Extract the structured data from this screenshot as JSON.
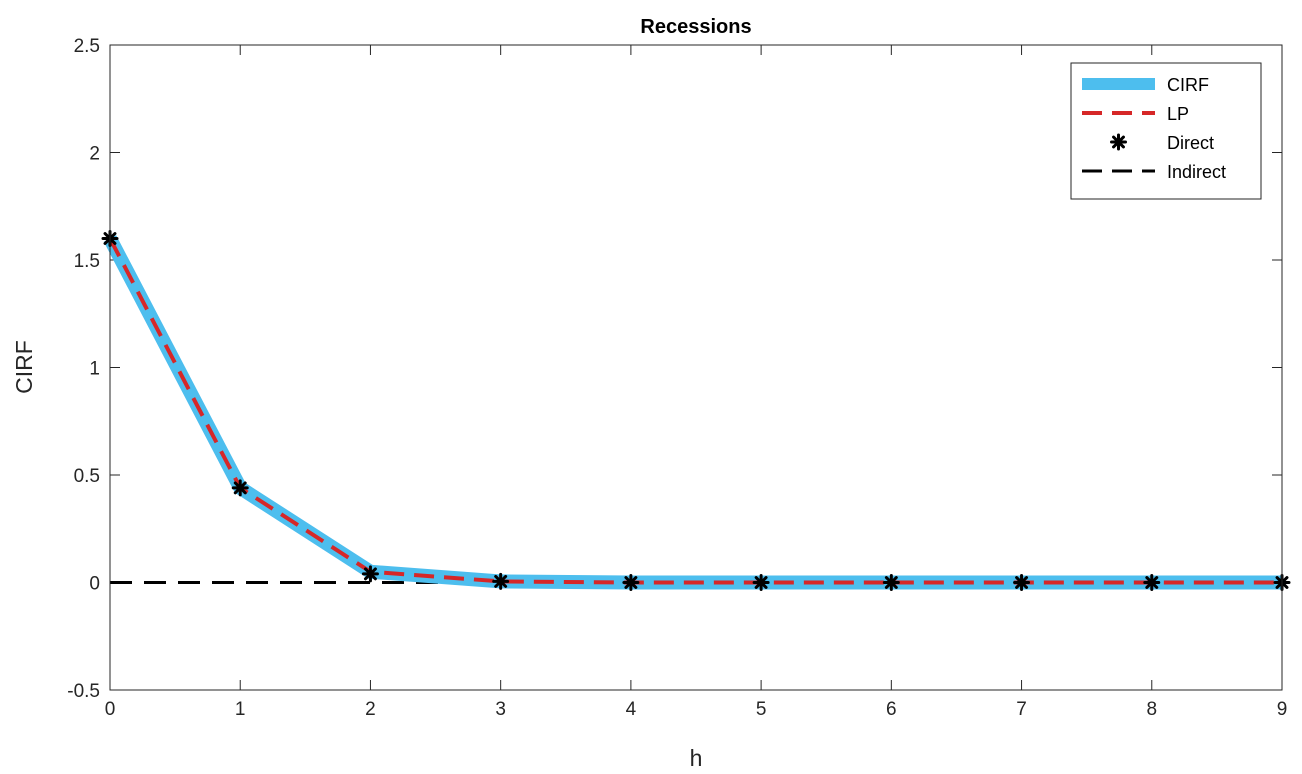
{
  "chart_data": {
    "type": "line",
    "title": "Recessions",
    "xlabel": "h",
    "ylabel": "CIRF",
    "xlim": [
      0,
      9
    ],
    "ylim": [
      -0.5,
      2.5
    ],
    "xticks": [
      0,
      1,
      2,
      3,
      4,
      5,
      6,
      7,
      8,
      9
    ],
    "yticks": [
      -0.5,
      0,
      0.5,
      1,
      1.5,
      2,
      2.5
    ],
    "ytick_labels": [
      "-0.5",
      "0",
      "0.5",
      "1",
      "1.5",
      "2",
      "2.5"
    ],
    "grid": false,
    "legend_position": "top-right",
    "x": [
      0,
      1,
      2,
      3,
      4,
      5,
      6,
      7,
      8,
      9
    ],
    "series": [
      {
        "name": "CIRF",
        "style": "thick-solid",
        "color": "#4DBEEE",
        "values": [
          1.6,
          0.44,
          0.05,
          0.005,
          0.0,
          0.0,
          0.0,
          0.0,
          0.0,
          0.0
        ]
      },
      {
        "name": "LP",
        "style": "dashed",
        "color": "#D62728",
        "values": [
          1.6,
          0.44,
          0.05,
          0.005,
          0.0,
          0.0,
          0.0,
          0.0,
          0.0,
          0.0
        ]
      },
      {
        "name": "Direct",
        "style": "markers",
        "color": "#000000",
        "values": [
          1.6,
          0.44,
          0.04,
          0.005,
          0.0,
          0.0,
          0.0,
          0.0,
          0.0,
          0.0
        ]
      },
      {
        "name": "Indirect",
        "style": "dashed",
        "color": "#000000",
        "values": [
          0,
          0,
          0,
          0,
          0,
          0,
          0,
          0,
          0,
          0
        ]
      }
    ]
  }
}
